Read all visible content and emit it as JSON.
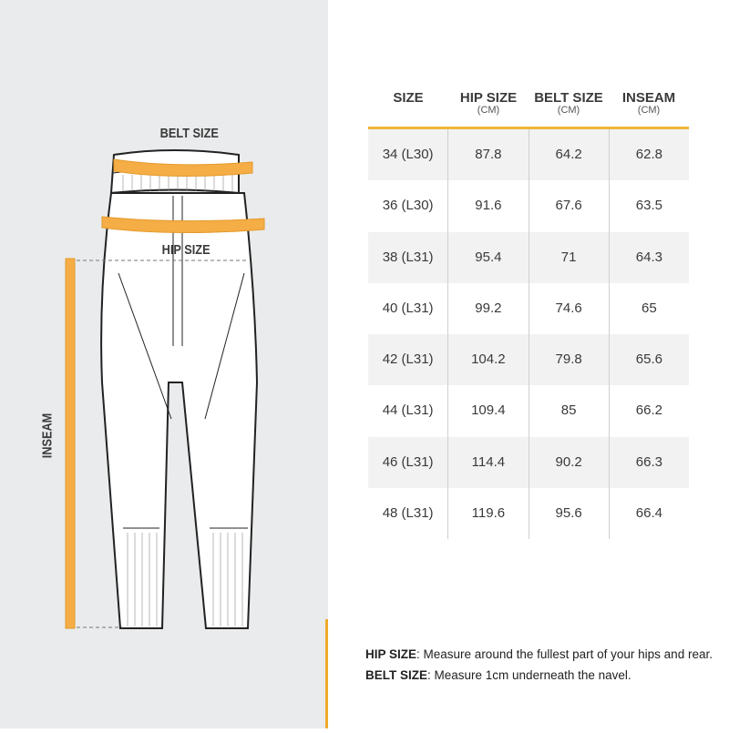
{
  "diagram": {
    "belt_label": "BELT SIZE",
    "hip_label": "HIP SIZE",
    "inseam_label": "INSEAM"
  },
  "table": {
    "headers": [
      {
        "title": "SIZE",
        "unit": ""
      },
      {
        "title": "HIP SIZE",
        "unit": "(CM)"
      },
      {
        "title": "BELT SIZE",
        "unit": "(CM)"
      },
      {
        "title": "INSEAM",
        "unit": "(CM)"
      }
    ],
    "rows": [
      [
        "34 (L30)",
        "87.8",
        "64.2",
        "62.8"
      ],
      [
        "36 (L30)",
        "91.6",
        "67.6",
        "63.5"
      ],
      [
        "38 (L31)",
        "95.4",
        "71",
        "64.3"
      ],
      [
        "40 (L31)",
        "99.2",
        "74.6",
        "65"
      ],
      [
        "42 (L31)",
        "104.2",
        "79.8",
        "65.6"
      ],
      [
        "44 (L31)",
        "109.4",
        "85",
        "66.2"
      ],
      [
        "46 (L31)",
        "114.4",
        "90.2",
        "66.3"
      ],
      [
        "48 (L31)",
        "119.6",
        "95.6",
        "66.4"
      ]
    ]
  },
  "notes": [
    {
      "term": "HIP SIZE",
      "text": ": Measure around the fullest part of your hips and rear."
    },
    {
      "term": "BELT SIZE",
      "text": ": Measure 1cm underneath the navel."
    }
  ],
  "colors": {
    "accent": "#f0a92a",
    "panel": "#e9ebec",
    "stripe": "#f2f2f2"
  }
}
